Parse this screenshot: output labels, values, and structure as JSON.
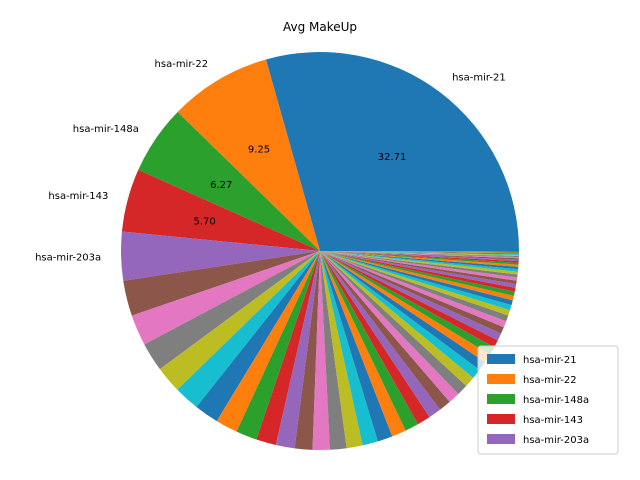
{
  "chart_data": {
    "type": "pie",
    "title": "Avg MakeUp",
    "categories": [
      "hsa-mir-21",
      "hsa-mir-22",
      "hsa-mir-148a",
      "hsa-mir-143",
      "hsa-mir-203a"
    ],
    "values": [
      32.71,
      9.25,
      6.27,
      5.7,
      4.4
    ],
    "value_labels": [
      "32.71",
      "9.25",
      "6.27",
      "5.70",
      ""
    ],
    "minor_slices": [
      3.2,
      2.8,
      2.6,
      2.4,
      2.3,
      2.2,
      2.0,
      1.9,
      1.8,
      1.7,
      1.6,
      1.55,
      1.5,
      1.45,
      1.4,
      1.35,
      1.3,
      1.25,
      1.2,
      1.15,
      1.1,
      1.05,
      1.0,
      0.95,
      0.9,
      0.85,
      0.8,
      0.75,
      0.7,
      0.66,
      0.62,
      0.58,
      0.54,
      0.5,
      0.47,
      0.44,
      0.41,
      0.38,
      0.35,
      0.33,
      0.31,
      0.29,
      0.27,
      0.25,
      0.23,
      0.21,
      0.19,
      0.17,
      0.15,
      0.13,
      0.12,
      0.11,
      0.1,
      0.09,
      0.08,
      0.07,
      0.06,
      0.05,
      0.05,
      0.04
    ],
    "legend": [
      "hsa-mir-21",
      "hsa-mir-22",
      "hsa-mir-148a",
      "hsa-mir-143",
      "hsa-mir-203a"
    ],
    "legend_position": "lower-right",
    "start_angle": 0,
    "direction": "counterclockwise",
    "colors": [
      "#1f77b4",
      "#ff7f0e",
      "#2ca02c",
      "#d62728",
      "#9467bd",
      "#8c564b",
      "#e377c2",
      "#7f7f7f",
      "#bcbd22",
      "#17becf"
    ]
  }
}
